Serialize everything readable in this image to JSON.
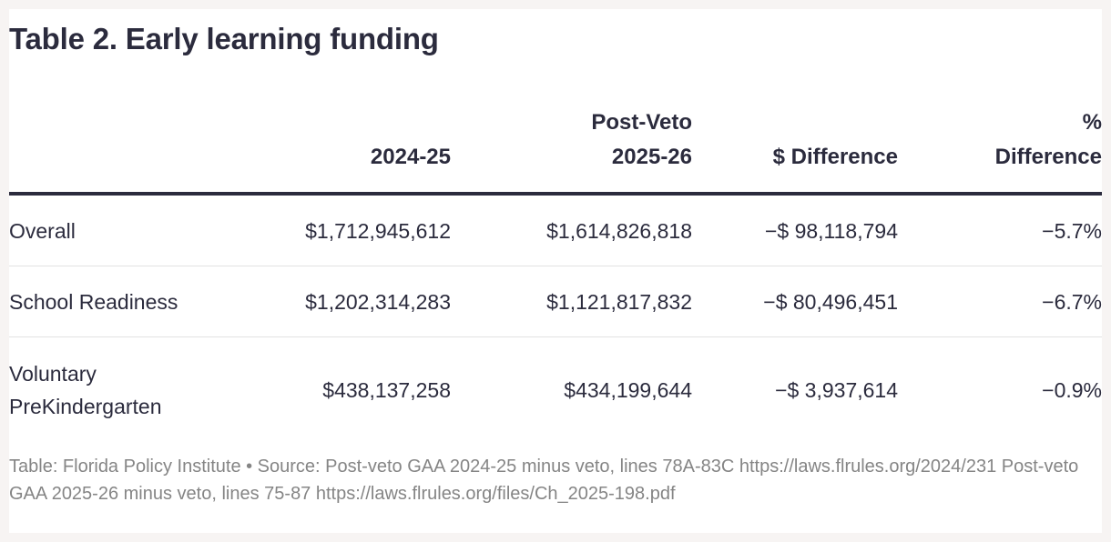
{
  "title": "Table 2. Early learning funding",
  "table": {
    "headers": [
      {
        "line1": "",
        "line2": ""
      },
      {
        "line1": "",
        "line2": "2024-25"
      },
      {
        "line1": "Post-Veto",
        "line2": "2025-26"
      },
      {
        "line1": "",
        "line2": "$ Difference"
      },
      {
        "line1": "%",
        "line2": "Difference"
      }
    ],
    "rows": [
      {
        "label": "Overall",
        "fy2024_25": "$1,712,945,612",
        "fy2025_26": "$1,614,826,818",
        "diff_dollars": "−$ 98,118,794",
        "diff_percent": "−5.7%"
      },
      {
        "label": "School Readiness",
        "fy2024_25": "$1,202,314,283",
        "fy2025_26": "$1,121,817,832",
        "diff_dollars": "−$ 80,496,451",
        "diff_percent": "−6.7%"
      },
      {
        "label_line1": "Voluntary",
        "label_line2": "PreKindergarten",
        "fy2024_25": "$438,137,258",
        "fy2025_26": "$434,199,644",
        "diff_dollars": "−$ 3,937,614",
        "diff_percent": "−0.9%"
      }
    ]
  },
  "footer": "Table: Florida Policy Institute • Source: Post-veto GAA 2024-25 minus veto, lines 78A-83C https://laws.flrules.org/2024/231 Post-veto GAA 2025-26 minus veto, lines 75-87 https://laws.flrules.org/files/Ch_2025-198.pdf"
}
